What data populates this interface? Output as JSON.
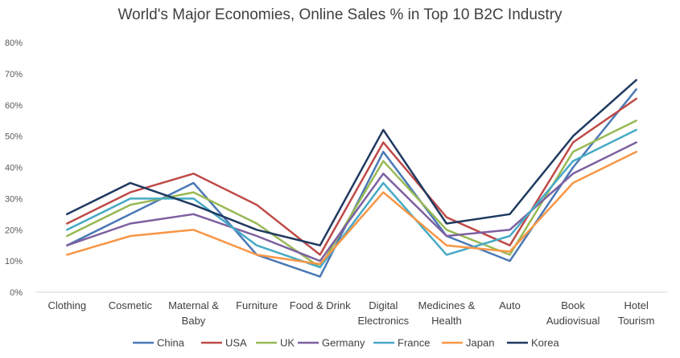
{
  "chart_data": {
    "type": "line",
    "title": "World's Major Economies, Online Sales % in Top 10 B2C Industry",
    "xlabel": "",
    "ylabel": "",
    "ylim": [
      0,
      80
    ],
    "yticks": [
      "0%",
      "10%",
      "20%",
      "30%",
      "40%",
      "50%",
      "60%",
      "70%",
      "80%"
    ],
    "grid": false,
    "legend": "bottom",
    "categories": [
      [
        "Clothing"
      ],
      [
        "Cosmetic"
      ],
      [
        "Maternal &",
        "Baby"
      ],
      [
        "Furniture"
      ],
      [
        "Food & Drink"
      ],
      [
        "Digital",
        "Electronics"
      ],
      [
        "Medicines &",
        "Health"
      ],
      [
        "Auto"
      ],
      [
        "Book",
        "Audiovisual"
      ],
      [
        "Hotel",
        "Tourism"
      ]
    ],
    "series": [
      {
        "name": "China",
        "color": "#4a78b5",
        "values": [
          15,
          25,
          35,
          12,
          5,
          45,
          18,
          10,
          40,
          65
        ]
      },
      {
        "name": "USA",
        "color": "#be4b48",
        "values": [
          22,
          32,
          38,
          28,
          12,
          48,
          24,
          15,
          48,
          62
        ]
      },
      {
        "name": "UK",
        "color": "#98b954",
        "values": [
          18,
          28,
          32,
          22,
          8,
          42,
          20,
          12,
          45,
          55
        ]
      },
      {
        "name": "Germany",
        "color": "#7d60a0",
        "values": [
          15,
          22,
          25,
          18,
          10,
          38,
          18,
          20,
          38,
          48
        ]
      },
      {
        "name": "France",
        "color": "#46aac5",
        "values": [
          20,
          30,
          30,
          15,
          8,
          35,
          12,
          18,
          42,
          52
        ]
      },
      {
        "name": "Japan",
        "color": "#f79646",
        "values": [
          12,
          18,
          20,
          12,
          9,
          32,
          15,
          13,
          35,
          45
        ]
      },
      {
        "name": "Korea",
        "color": "#1f3a60",
        "values": [
          25,
          35,
          28,
          20,
          15,
          52,
          22,
          25,
          50,
          68
        ]
      }
    ]
  }
}
